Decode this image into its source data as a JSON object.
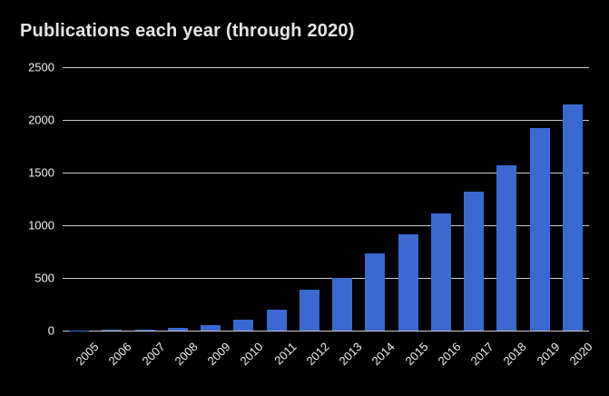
{
  "chart_data": {
    "type": "bar",
    "title": "Publications each year (through 2020)",
    "categories": [
      "2005",
      "2006",
      "2007",
      "2008",
      "2009",
      "2010",
      "2011",
      "2012",
      "2013",
      "2014",
      "2015",
      "2016",
      "2017",
      "2018",
      "2019",
      "2020"
    ],
    "values": [
      2,
      5,
      10,
      30,
      50,
      100,
      195,
      390,
      500,
      730,
      915,
      1115,
      1320,
      1565,
      1925,
      2150
    ],
    "xlabel": "",
    "ylabel": "",
    "ylim": [
      0,
      2500
    ],
    "yticks": [
      0,
      500,
      1000,
      1500,
      2000,
      2500
    ],
    "grid": true,
    "legend_position": "none",
    "x_tick_rotation_deg": 45,
    "colors": {
      "background": "#000000",
      "bar": "#3B69D1",
      "gridline": "#CBCBCB",
      "title_text": "#E6E6E6",
      "tick_text": "#F2F2F2"
    }
  }
}
